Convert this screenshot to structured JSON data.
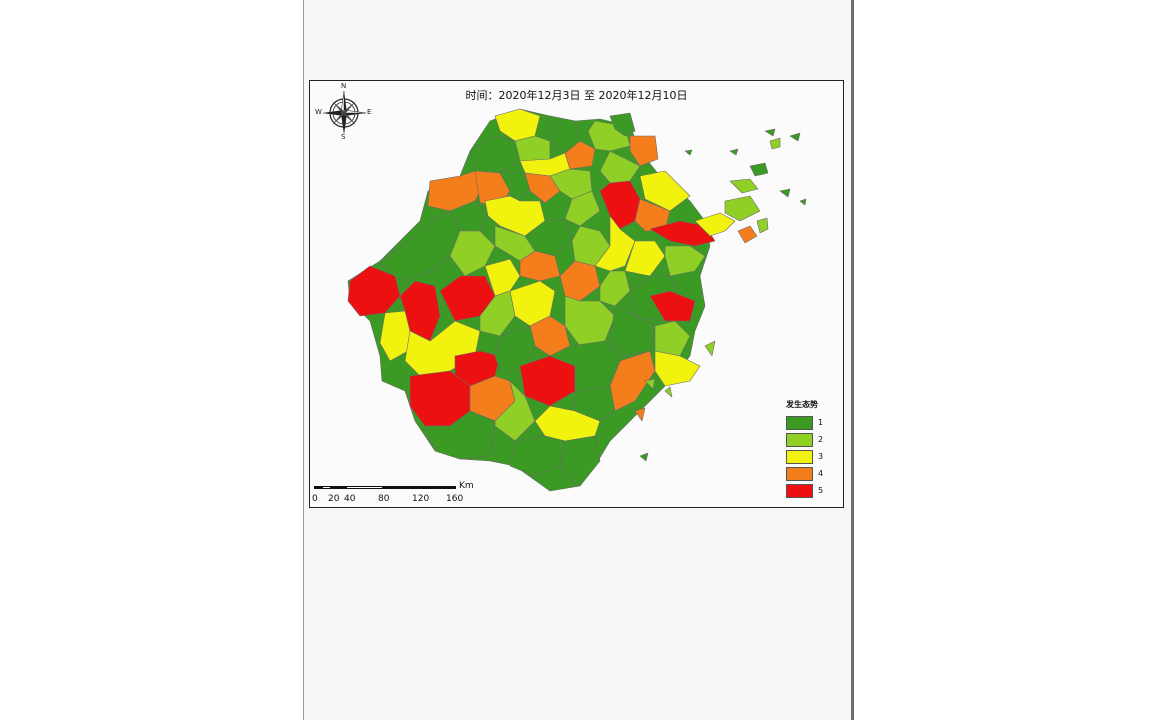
{
  "map": {
    "title": "时间：2020年12月3日  至  2020年12月10日",
    "compass": {
      "n": "N",
      "s": "S",
      "e": "E",
      "w": "W"
    },
    "legend": {
      "title": "发生态势",
      "items": [
        {
          "label": "1",
          "color": "#3a9a23"
        },
        {
          "label": "2",
          "color": "#8fcf26"
        },
        {
          "label": "3",
          "color": "#f2f20f"
        },
        {
          "label": "4",
          "color": "#f47e1b"
        },
        {
          "label": "5",
          "color": "#ec1010"
        }
      ]
    },
    "scale": {
      "unit": "Km",
      "ticks": [
        "0",
        "20",
        "40",
        "80",
        "120",
        "160"
      ]
    }
  }
}
